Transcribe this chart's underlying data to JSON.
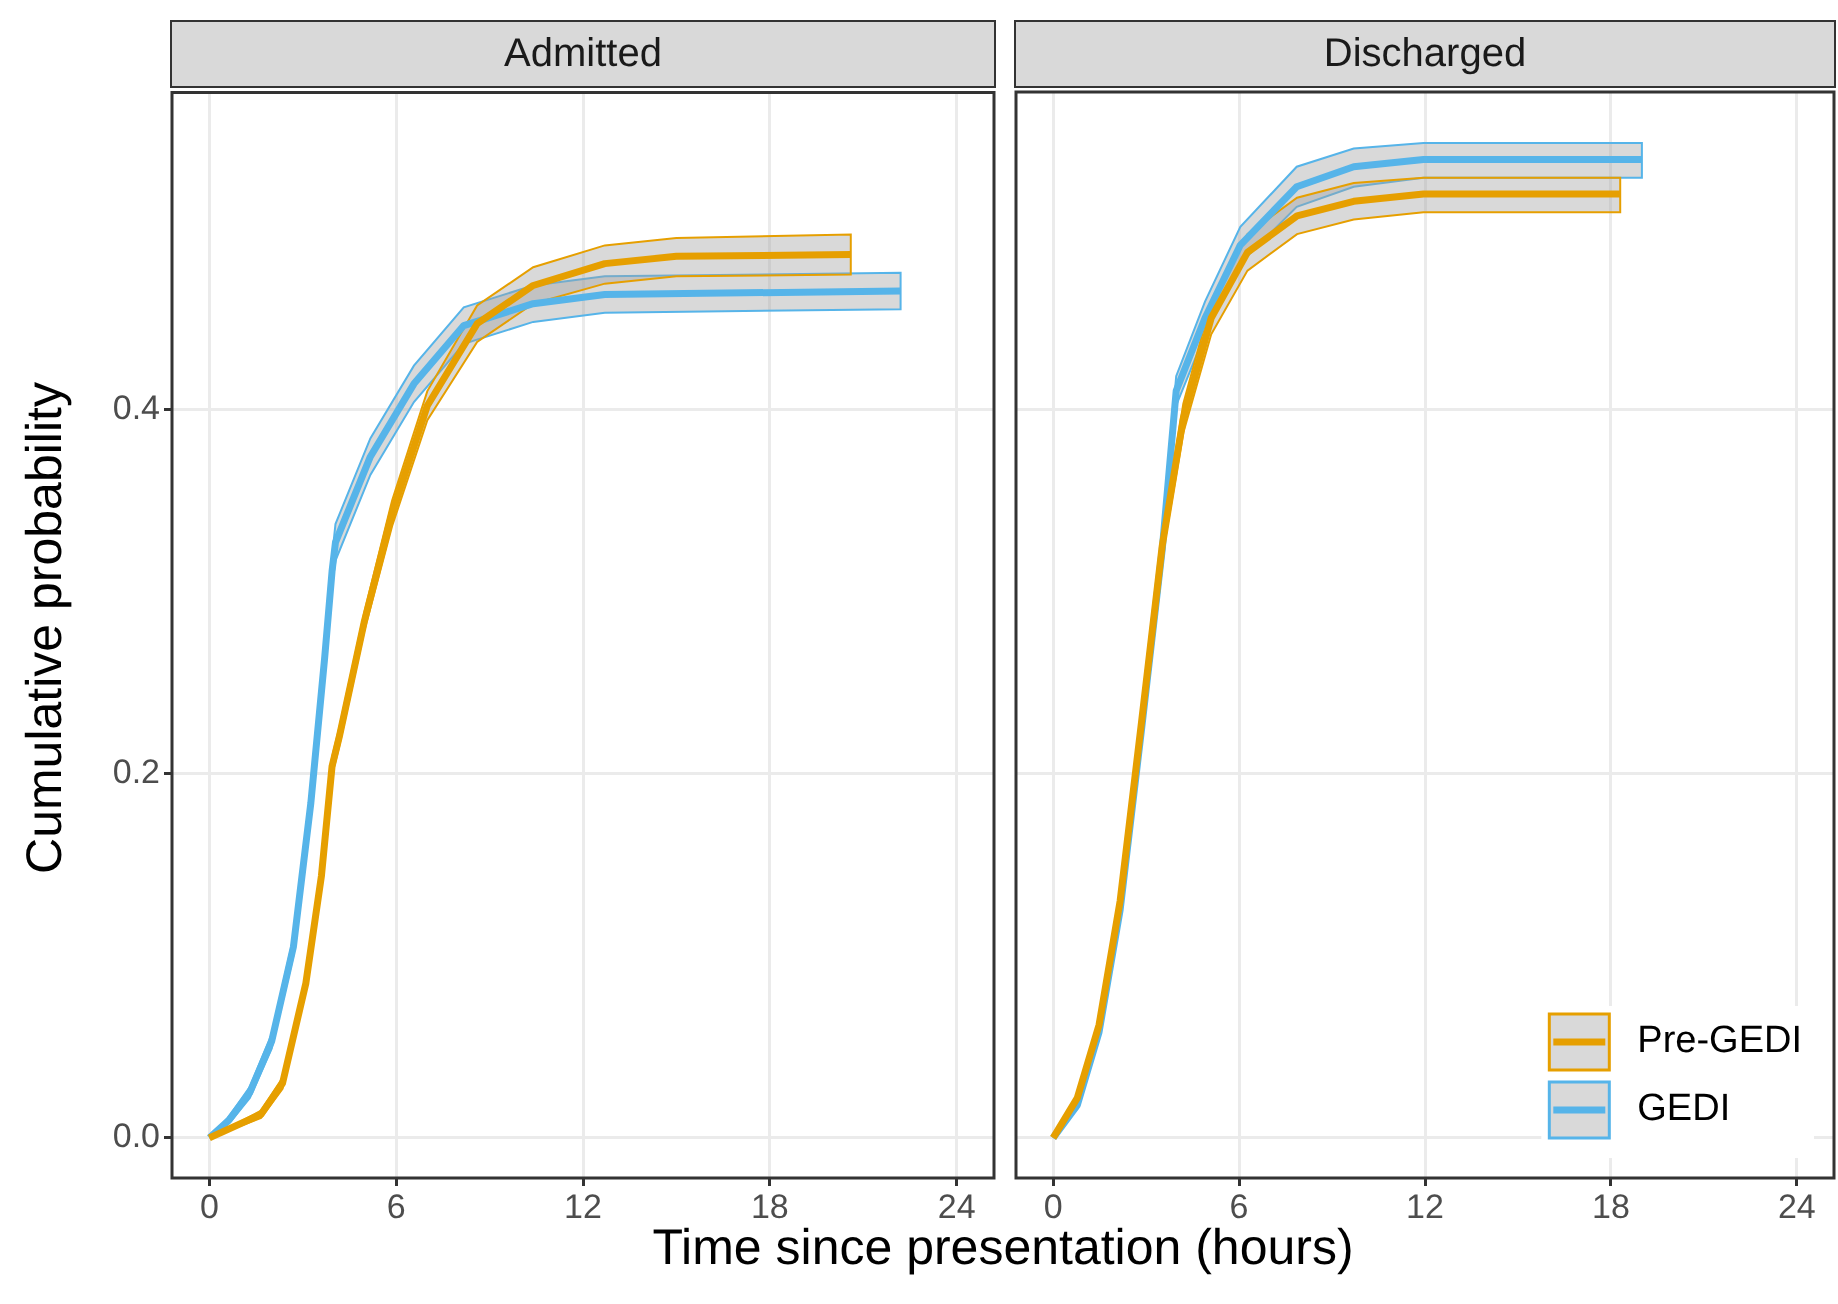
{
  "chart_data": [
    {
      "type": "line",
      "title": "Admitted",
      "xlabel": "Time since presentation (hours)",
      "ylabel": "Cumulative probability",
      "xlim": [
        -1.2,
        25.2
      ],
      "ylim": [
        -0.022,
        0.574
      ],
      "xticks": [
        0,
        6,
        12,
        18,
        24
      ],
      "yticks": [
        {
          "value": 0,
          "label": "0.0"
        },
        {
          "value": 0.2,
          "label": "0.2"
        },
        {
          "value": 0.4,
          "label": "0.4"
        }
      ],
      "grid": true,
      "line_style": "solid",
      "marker": "none",
      "series": [
        {
          "color": "#e69f00",
          "x": [
            0,
            1.66,
            2.35,
            3.1,
            3.6,
            3.94,
            4.17,
            4.97,
            5.87,
            7.0,
            8.6,
            10.4,
            12.7,
            15,
            20.6
          ],
          "values": [
            0,
            0.013,
            0.03,
            0.085,
            0.144,
            0.204,
            0.22,
            0.283,
            0.343,
            0.402,
            0.447,
            0.468,
            0.48,
            0.484,
            0.485
          ],
          "lower": [
            0,
            0.011,
            0.027,
            0.081,
            0.139,
            0.199,
            0.215,
            0.278,
            0.336,
            0.394,
            0.437,
            0.458,
            0.469,
            0.473,
            0.474
          ],
          "upper": [
            0,
            0.015,
            0.033,
            0.089,
            0.149,
            0.209,
            0.225,
            0.288,
            0.35,
            0.41,
            0.457,
            0.478,
            0.49,
            0.494,
            0.496
          ]
        },
        {
          "color": "#56b4e9",
          "x": [
            0,
            0.64,
            1.3,
            2.0,
            2.7,
            3.26,
            3.7,
            3.94,
            4.05,
            5.17,
            6.57,
            8.17,
            10.4,
            12.7,
            22.2
          ],
          "values": [
            0,
            0.01,
            0.025,
            0.053,
            0.105,
            0.184,
            0.263,
            0.311,
            0.327,
            0.374,
            0.414,
            0.446,
            0.458,
            0.463,
            0.465
          ],
          "lower": [
            0,
            0.008,
            0.022,
            0.049,
            0.1,
            0.178,
            0.256,
            0.303,
            0.317,
            0.364,
            0.404,
            0.436,
            0.448,
            0.453,
            0.455
          ],
          "upper": [
            0,
            0.012,
            0.028,
            0.057,
            0.11,
            0.19,
            0.27,
            0.319,
            0.337,
            0.384,
            0.424,
            0.456,
            0.468,
            0.473,
            0.475
          ]
        }
      ]
    },
    {
      "type": "line",
      "title": "Discharged",
      "xlim": [
        -1.2,
        25.2
      ],
      "ylim": [
        -0.022,
        0.574
      ],
      "xticks": [
        0,
        6,
        12,
        18,
        24
      ],
      "yticks": [
        0,
        0.2,
        0.4
      ],
      "tick_labels": "x",
      "grid": true,
      "legend": "bottom right",
      "line_style": "solid",
      "marker": "none",
      "series": [
        {
          "name": "Pre-GEDI",
          "color": "#e69f00",
          "x": [
            0,
            0.78,
            1.48,
            2.16,
            2.85,
            3.52,
            4.2,
            5.1,
            6.27,
            7.87,
            9.7,
            11.95,
            18.3
          ],
          "values": [
            0,
            0.022,
            0.062,
            0.13,
            0.228,
            0.325,
            0.395,
            0.45,
            0.486,
            0.506,
            0.514,
            0.518,
            0.518
          ],
          "lower": [
            0,
            0.02,
            0.059,
            0.126,
            0.223,
            0.319,
            0.387,
            0.441,
            0.476,
            0.496,
            0.504,
            0.508,
            0.508
          ],
          "upper": [
            0,
            0.024,
            0.065,
            0.134,
            0.233,
            0.331,
            0.403,
            0.459,
            0.496,
            0.516,
            0.524,
            0.527,
            0.527
          ]
        },
        {
          "name": "GEDI",
          "color": "#56b4e9",
          "x": [
            0,
            0.78,
            1.48,
            2.16,
            2.85,
            3.52,
            3.97,
            4.9,
            6.04,
            7.86,
            9.7,
            11.95,
            19.0
          ],
          "values": [
            0,
            0.018,
            0.058,
            0.125,
            0.224,
            0.323,
            0.41,
            0.45,
            0.49,
            0.522,
            0.533,
            0.537,
            0.537
          ],
          "lower": [
            0,
            0.016,
            0.055,
            0.121,
            0.219,
            0.317,
            0.402,
            0.441,
            0.48,
            0.511,
            0.522,
            0.527,
            0.527
          ],
          "upper": [
            0,
            0.02,
            0.061,
            0.129,
            0.229,
            0.329,
            0.418,
            0.459,
            0.5,
            0.533,
            0.543,
            0.546,
            0.546
          ]
        }
      ]
    }
  ]
}
